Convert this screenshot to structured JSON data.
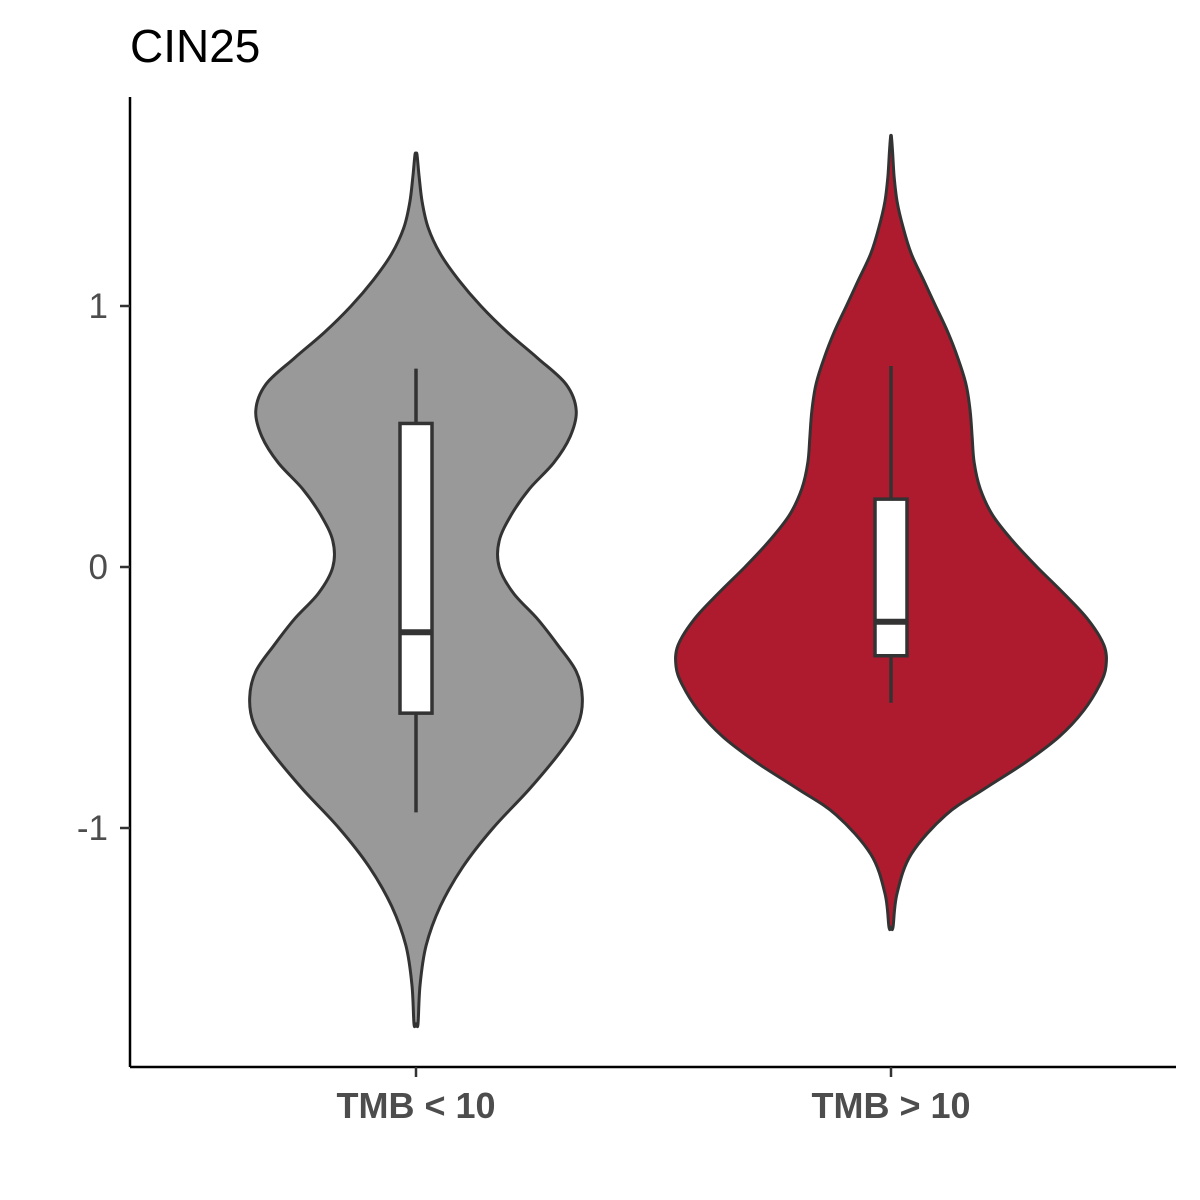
{
  "chart_data": {
    "type": "violin",
    "title": "CIN25",
    "xlabel": "",
    "ylabel": "",
    "categories": [
      "TMB < 10",
      "TMB > 10"
    ],
    "y_ticks": [
      {
        "value": 1,
        "label": "1"
      },
      {
        "value": 0,
        "label": "0"
      },
      {
        "value": -1,
        "label": "-1"
      }
    ],
    "ylim": [
      -1.9,
      1.8
    ],
    "grid": false,
    "legend": "none",
    "series": [
      {
        "category": "TMB < 10",
        "color": "#999999",
        "box": {
          "whisker_low": -0.94,
          "q1": -0.56,
          "median": -0.25,
          "q3": 0.55,
          "whisker_high": 0.76
        },
        "density": [
          [
            -1.75,
            0.01
          ],
          [
            -1.6,
            0.02
          ],
          [
            -1.45,
            0.05
          ],
          [
            -1.3,
            0.12
          ],
          [
            -1.15,
            0.23
          ],
          [
            -1.0,
            0.38
          ],
          [
            -0.85,
            0.56
          ],
          [
            -0.7,
            0.72
          ],
          [
            -0.6,
            0.8
          ],
          [
            -0.5,
            0.82
          ],
          [
            -0.4,
            0.79
          ],
          [
            -0.3,
            0.7
          ],
          [
            -0.2,
            0.6
          ],
          [
            -0.1,
            0.48
          ],
          [
            0.0,
            0.41
          ],
          [
            0.1,
            0.41
          ],
          [
            0.2,
            0.47
          ],
          [
            0.3,
            0.56
          ],
          [
            0.4,
            0.68
          ],
          [
            0.5,
            0.76
          ],
          [
            0.6,
            0.79
          ],
          [
            0.7,
            0.74
          ],
          [
            0.8,
            0.6
          ],
          [
            0.9,
            0.45
          ],
          [
            1.0,
            0.32
          ],
          [
            1.1,
            0.21
          ],
          [
            1.2,
            0.12
          ],
          [
            1.3,
            0.06
          ],
          [
            1.4,
            0.03
          ],
          [
            1.5,
            0.015
          ],
          [
            1.58,
            0.005
          ]
        ]
      },
      {
        "category": "TMB > 10",
        "color": "#AE1A2E",
        "box": {
          "whisker_low": -0.52,
          "q1": -0.34,
          "median": -0.21,
          "q3": 0.26,
          "whisker_high": 0.77
        },
        "density": [
          [
            -1.38,
            0.01
          ],
          [
            -1.25,
            0.03
          ],
          [
            -1.1,
            0.1
          ],
          [
            -0.95,
            0.27
          ],
          [
            -0.85,
            0.46
          ],
          [
            -0.75,
            0.66
          ],
          [
            -0.65,
            0.83
          ],
          [
            -0.55,
            0.95
          ],
          [
            -0.45,
            1.03
          ],
          [
            -0.38,
            1.06
          ],
          [
            -0.3,
            1.05
          ],
          [
            -0.2,
            0.97
          ],
          [
            -0.1,
            0.85
          ],
          [
            0.0,
            0.72
          ],
          [
            0.1,
            0.6
          ],
          [
            0.2,
            0.5
          ],
          [
            0.3,
            0.44
          ],
          [
            0.4,
            0.41
          ],
          [
            0.5,
            0.4
          ],
          [
            0.6,
            0.39
          ],
          [
            0.7,
            0.37
          ],
          [
            0.8,
            0.33
          ],
          [
            0.9,
            0.28
          ],
          [
            1.0,
            0.22
          ],
          [
            1.1,
            0.16
          ],
          [
            1.2,
            0.1
          ],
          [
            1.3,
            0.06
          ],
          [
            1.4,
            0.03
          ],
          [
            1.5,
            0.015
          ],
          [
            1.6,
            0.007
          ],
          [
            1.65,
            0.002
          ]
        ]
      }
    ]
  }
}
